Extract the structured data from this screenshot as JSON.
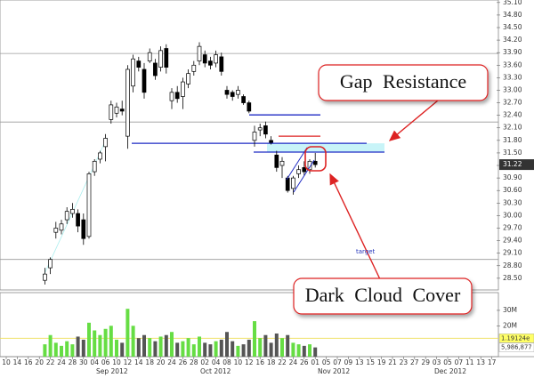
{
  "chart_data": {
    "type": "candlestick",
    "categories": [
      "10",
      null,
      "14",
      null,
      "16",
      null,
      "20",
      null,
      "22",
      null,
      "24",
      null,
      "28",
      null,
      "30",
      null,
      "04",
      null,
      "06",
      null,
      "10",
      null,
      "12",
      null,
      "14",
      null,
      "18",
      null,
      "20",
      null,
      "24",
      null,
      "26",
      null,
      "28",
      null,
      "02",
      null,
      "04",
      null,
      "08",
      null,
      "10",
      null,
      "12",
      null,
      "16",
      null,
      "18",
      null,
      "22",
      null,
      "24",
      null,
      "26",
      null,
      "01",
      null,
      "05",
      null,
      "07",
      null,
      "09",
      null,
      "13",
      null,
      "15",
      null,
      "19",
      null,
      "21",
      null,
      "23",
      null,
      "27",
      null,
      "29",
      null,
      "03",
      null,
      "05",
      null,
      "07",
      null,
      "11",
      null,
      "13",
      null,
      "17",
      null
    ],
    "months": [
      "Sep 2012",
      "Oct 2012",
      "Nov 2012",
      "Dec 2012"
    ],
    "open": [
      null,
      null,
      null,
      null,
      null,
      null,
      null,
      28.45,
      28.75,
      29.6,
      29.65,
      29.9,
      30.05,
      30.05,
      29.9,
      29.5,
      31.05,
      31.35,
      31.65,
      32.3,
      32.45,
      32.55,
      31.9,
      33.1,
      33.7,
      33.5,
      33.7,
      33.65,
      33.55,
      34.0,
      32.75,
      32.95,
      32.85,
      33.15,
      33.45,
      33.7,
      33.85,
      33.7,
      33.65,
      33.8,
      33.0,
      32.95,
      32.9,
      32.85,
      32.7,
      31.8,
      32.05,
      32.15,
      31.8,
      31.45,
      31.2,
      30.9,
      30.65,
      31.0,
      31.15,
      31.1,
      31.3,
      null,
      null,
      null,
      null,
      null,
      null,
      null,
      null,
      null,
      null,
      null,
      null,
      null,
      null,
      null,
      null,
      null,
      null,
      null,
      null,
      null,
      null,
      null,
      null,
      null,
      null,
      null,
      null,
      null,
      null,
      null,
      null,
      null
    ],
    "high": [
      null,
      null,
      null,
      null,
      null,
      null,
      null,
      28.75,
      29.0,
      29.85,
      29.9,
      30.2,
      30.3,
      30.15,
      30.05,
      31.05,
      31.35,
      31.55,
      31.95,
      32.75,
      32.7,
      32.75,
      33.6,
      33.85,
      33.8,
      33.65,
      34.0,
      33.75,
      34.05,
      34.1,
      33.05,
      33.1,
      33.3,
      33.5,
      33.7,
      34.15,
      33.95,
      33.8,
      33.95,
      33.9,
      33.1,
      33.0,
      33.1,
      32.9,
      32.75,
      32.15,
      32.2,
      32.25,
      31.9,
      31.55,
      31.4,
      30.95,
      30.95,
      31.2,
      31.3,
      31.35,
      31.5,
      null,
      null,
      null,
      null,
      null,
      null,
      null,
      null,
      null,
      null,
      null,
      null,
      null,
      null,
      null,
      null,
      null,
      null,
      null,
      null,
      null,
      null,
      null,
      null,
      null,
      null,
      null,
      null,
      null,
      null,
      null,
      null,
      null
    ],
    "low": [
      null,
      null,
      null,
      null,
      null,
      null,
      null,
      28.35,
      28.6,
      29.45,
      29.55,
      29.8,
      29.95,
      29.6,
      29.3,
      29.45,
      30.95,
      31.25,
      31.3,
      32.2,
      32.35,
      32.4,
      31.6,
      32.95,
      33.45,
      32.8,
      33.65,
      33.25,
      33.45,
      33.4,
      32.55,
      32.7,
      32.55,
      33.05,
      33.35,
      33.6,
      33.55,
      33.5,
      33.55,
      33.35,
      32.8,
      32.75,
      32.8,
      32.65,
      32.45,
      31.65,
      31.9,
      31.85,
      31.7,
      31.05,
      30.9,
      30.55,
      30.5,
      30.9,
      30.95,
      31.0,
      31.15,
      null,
      null,
      null,
      null,
      null,
      null,
      null,
      null,
      null,
      null,
      null,
      null,
      null,
      null,
      null,
      null,
      null,
      null,
      null,
      null,
      null,
      null,
      null,
      null,
      null,
      null,
      null,
      null,
      null,
      null,
      null,
      null,
      null
    ],
    "close": [
      null,
      null,
      null,
      null,
      null,
      null,
      null,
      28.6,
      28.95,
      29.7,
      29.8,
      30.1,
      30.15,
      29.75,
      29.45,
      31.0,
      31.3,
      31.5,
      31.85,
      32.65,
      32.6,
      32.5,
      33.5,
      33.75,
      33.55,
      32.95,
      33.9,
      33.35,
      33.95,
      33.55,
      32.95,
      32.8,
      33.2,
      33.4,
      33.6,
      34.05,
      33.65,
      33.6,
      33.85,
      33.45,
      32.9,
      32.85,
      33.0,
      32.7,
      32.5,
      32.0,
      32.1,
      31.95,
      31.75,
      31.15,
      31.3,
      30.6,
      30.9,
      31.1,
      31.05,
      31.3,
      31.22,
      null,
      null,
      null,
      null,
      null,
      null,
      null,
      null,
      null,
      null,
      null,
      null,
      null,
      null,
      null,
      null,
      null,
      null,
      null,
      null,
      null,
      null,
      null,
      null,
      null,
      null,
      null,
      null,
      null,
      null,
      null,
      null,
      null
    ],
    "volume": [
      null,
      null,
      null,
      null,
      null,
      null,
      null,
      8000000,
      14000000,
      9000000,
      7000000,
      10000000,
      8000000,
      13000000,
      11000000,
      22000000,
      17000000,
      14000000,
      18000000,
      20000000,
      11000000,
      9000000,
      31000000,
      20000000,
      12000000,
      14000000,
      12000000,
      10000000,
      13000000,
      14000000,
      16000000,
      9000000,
      10000000,
      12000000,
      8000000,
      13000000,
      9000000,
      8000000,
      10000000,
      11000000,
      16000000,
      10000000,
      7000000,
      8000000,
      11000000,
      23000000,
      12000000,
      14000000,
      9000000,
      15000000,
      12000000,
      14000000,
      9000000,
      8000000,
      7000000,
      8000000,
      5986877,
      null,
      null,
      null,
      null,
      null,
      null,
      null,
      null,
      null,
      null,
      null,
      null,
      null,
      null,
      null,
      null,
      null,
      null,
      null,
      null,
      null,
      null,
      null,
      null,
      null,
      null,
      null,
      null,
      null,
      null,
      null,
      null,
      null
    ],
    "ylim": [
      28.22,
      35.16
    ],
    "yticks": [
      {
        "value": 35.1,
        "label": "35.10"
      },
      {
        "value": 34.8,
        "label": "34.80"
      },
      {
        "value": 34.5,
        "label": "34.50"
      },
      {
        "value": 34.2,
        "label": "34.20"
      },
      {
        "value": 33.9,
        "label": "33.90"
      },
      {
        "value": 33.6,
        "label": "33.60"
      },
      {
        "value": 33.3,
        "label": "33.30"
      },
      {
        "value": 33,
        "label": "33.00"
      },
      {
        "value": 32.7,
        "label": "32.70"
      },
      {
        "value": 32.4,
        "label": "32.40"
      },
      {
        "value": 32.1,
        "label": "32.10"
      },
      {
        "value": 31.8,
        "label": "31.80"
      },
      {
        "value": 31.5,
        "label": "31.50"
      },
      {
        "value": 31.2,
        "label": "31.20"
      },
      {
        "value": 30.9,
        "label": "30.90"
      },
      {
        "value": 30.6,
        "label": "30.60"
      },
      {
        "value": 30.3,
        "label": "30.30"
      },
      {
        "value": 30,
        "label": "30.00"
      },
      {
        "value": 29.7,
        "label": "29.70"
      },
      {
        "value": 29.4,
        "label": "29.40"
      },
      {
        "value": 29.1,
        "label": "29.10"
      },
      {
        "value": 28.8,
        "label": "28.80"
      },
      {
        "value": 28.5,
        "label": "28.50"
      }
    ],
    "volume_ylim": [
      0,
      41500000
    ],
    "volume_yticks": [
      {
        "value": 30000000,
        "label": "30M"
      },
      {
        "value": 20000000,
        "label": "20M"
      }
    ],
    "volume_readouts": [
      {
        "value": 11912400,
        "label": "1.19124e",
        "color": "#ffff66"
      },
      {
        "value": 5986877,
        "label": "5,986,877",
        "color": "#ffffff"
      }
    ],
    "up_color": "#ffffff",
    "down_color": "#000000",
    "volume_up_color": "#66dd44",
    "volume_down_color": "#555555",
    "levels": [
      {
        "value": 33.88,
        "color": "#999999"
      },
      {
        "value": 32.24,
        "color": "#999999"
      },
      {
        "value": 28.95,
        "color": "#999999"
      },
      {
        "value": 32.41,
        "color": "#1f2bc4"
      },
      {
        "value": 31.73,
        "color": "#1f2bc4"
      },
      {
        "value": 31.52,
        "color": "#1f2bc4"
      },
      {
        "value": 31.9,
        "color": "#dd2222"
      }
    ],
    "annotations": {
      "gap": "Gap Resistance",
      "pattern": "Dark Cloud Cover",
      "target": "target"
    }
  }
}
